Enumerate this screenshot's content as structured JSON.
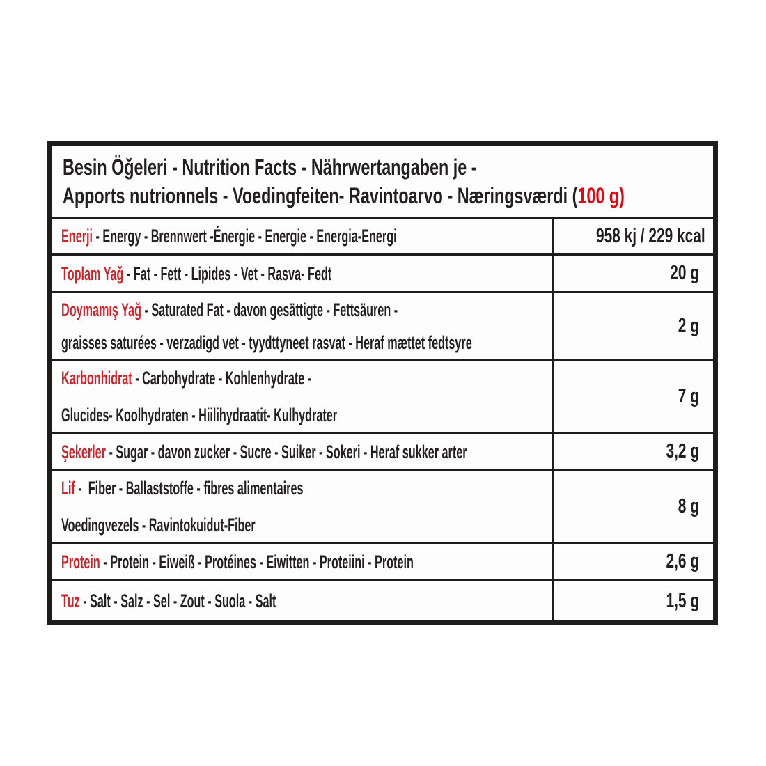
{
  "label": {
    "header": {
      "line1": "Besin Öğeleri - Nutrition Facts - Nährwertangaben je -",
      "line2_black": "Apports nutrionnels - Voedingfeiten- Ravintoarvo - Næringsværdi (",
      "line2_red": "100 g)",
      "serving_size": "100 g"
    },
    "rows": [
      {
        "id": "energy",
        "term": "Enerji",
        "rest": " - Energy - Brennwert -Énergie - Energie - Energia-Energi",
        "value": "958 kj / 229 kcal"
      },
      {
        "id": "fat",
        "term": "Toplam Yağ",
        "rest": " - Fat - Fett - Lipides - Vet - Rasva- Fedt",
        "value": "20 g"
      },
      {
        "id": "saturated-fat",
        "term": "Doymamış Yağ",
        "rest": " - Saturated Fat - davon gesättigte - Fettsäuren -",
        "line2": "graisses saturées - verzadigd vet - tyydttyneet rasvat - Heraf mættet fedtsyre",
        "value": "2 g"
      },
      {
        "id": "carbohydrate",
        "term": "Karbonhidrat",
        "rest": " - Carbohydrate - Kohlenhydrate -",
        "line2": "Glucides- Koolhydraten - Hiilihydraatit- Kulhydrater",
        "value": "7 g"
      },
      {
        "id": "sugar",
        "term": "Şekerler",
        "rest": " - Sugar - davon zucker - Sucre - Suiker - Sokeri - Heraf sukker arter",
        "value": "3,2 g"
      },
      {
        "id": "fiber",
        "term": "Lif",
        "rest": " -  Fiber - Ballaststoffe - fibres alimentaires",
        "line2": "Voedingvezels - Ravintokuidut-Fiber",
        "value": "8 g"
      },
      {
        "id": "protein",
        "term": "Protein",
        "rest": " - Protein - Eiweiß - Protéines - Eiwitten - Proteiini - Protein",
        "value": "2,6 g"
      },
      {
        "id": "salt",
        "term": "Tuz",
        "rest": " - Salt - Salz - Sel - Zout - Suola - Salt",
        "value": "1,5 g"
      }
    ]
  },
  "colors": {
    "term_red": "#d2232a",
    "header_red": "#e30613",
    "text": "#231f20",
    "border": "#1d1d1b",
    "background": "#ffffff"
  }
}
